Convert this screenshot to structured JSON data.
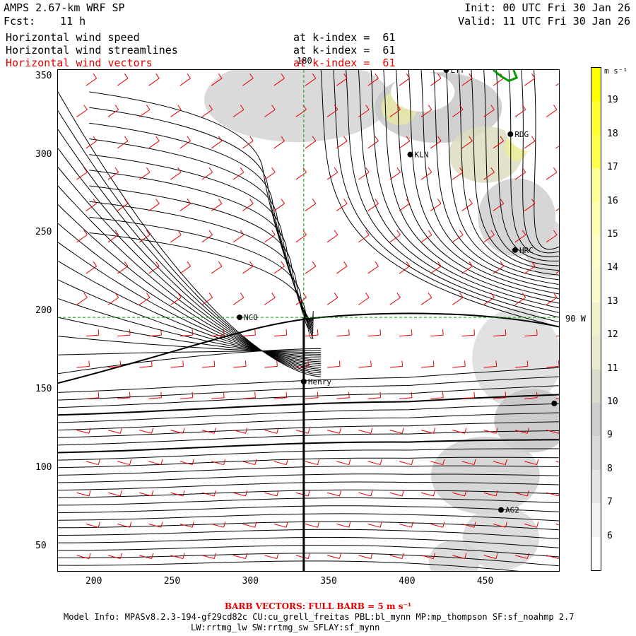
{
  "header": {
    "model": "AMPS 2.67-km WRF SP",
    "fcst_label": "Fcst:",
    "fcst_value": "11 h",
    "init": "Init: 00 UTC Fri 30 Jan 26",
    "valid": "Valid: 11 UTC Fri 30 Jan 26",
    "fields": [
      {
        "name": "Horizontal wind speed",
        "level": "at k-index =  61",
        "color": "#000000"
      },
      {
        "name": "Horizontal wind streamlines",
        "level": "at k-index =  61",
        "color": "#000000"
      },
      {
        "name": "Horizontal wind vectors",
        "level": "at k-index =  61",
        "color": "#e60000"
      }
    ]
  },
  "map": {
    "x_ticks": [
      "200",
      "250",
      "300",
      "350",
      "400",
      "450"
    ],
    "y_ticks": [
      "50",
      "100",
      "150",
      "200",
      "250",
      "300",
      "350"
    ],
    "meridian_label": "180",
    "parallel_label": "90 W",
    "stations": [
      {
        "name": "LYT",
        "x": 425,
        "y": 354
      },
      {
        "name": "RDG",
        "x": 466,
        "y": 313
      },
      {
        "name": "KLN",
        "x": 402,
        "y": 300
      },
      {
        "name": "HRC",
        "x": 469,
        "y": 239
      },
      {
        "name": "NCO",
        "x": 293,
        "y": 196
      },
      {
        "name": "Henry",
        "x": 334,
        "y": 155
      },
      {
        "name": "",
        "x": 494,
        "y": 141
      },
      {
        "name": "AG2",
        "x": 460,
        "y": 73
      }
    ],
    "x_range": [
      177,
      497
    ],
    "y_range": [
      34,
      354
    ],
    "colors": {
      "streamline": "#000000",
      "barb": "#e60000",
      "coast": "#009900",
      "grid": "#009900"
    }
  },
  "colorbar": {
    "unit": "m s⁻¹",
    "levels": [
      "6",
      "7",
      "8",
      "9",
      "10",
      "11",
      "12",
      "13",
      "14",
      "15",
      "16",
      "17",
      "18",
      "19"
    ],
    "colors": [
      "#ffffff",
      "#f2f2f2",
      "#e6e6e6",
      "#dadada",
      "#cfcfcf",
      "#dcdccd",
      "#ebebcd",
      "#f2f2cc",
      "#fafacd",
      "#ffffcc",
      "#ffffb3",
      "#ffff99",
      "#ffff4d",
      "#ffff33",
      "#ffff00"
    ]
  },
  "footer": {
    "barb_note": "BARB VECTORS:  FULL BARB = 5 m s⁻¹",
    "model_info": "Model Info: MPASv8.2.3-194-gf29cd82c CU:cu_grell_freitas PBL:bl_mynn MP:mp_thompson SF:sf_noahmp 2.7",
    "model_info2": "LW:rrtmg_lw SW:rrtmg_sw SFLAY:sf_mynn"
  }
}
